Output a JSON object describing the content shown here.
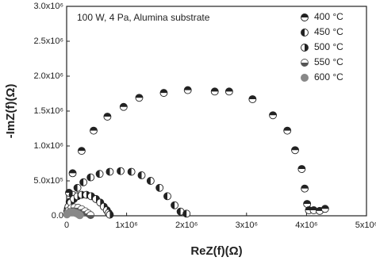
{
  "chart_data": {
    "type": "scatter",
    "annotation": "100 W, 4 Pa, Alumina substrate",
    "x_label": "ReZ(f)(Ω)",
    "y_label": "-ImZ(f)(Ω)",
    "xlim": [
      0,
      5000000
    ],
    "ylim": [
      0,
      3000000
    ],
    "xticks": [
      0,
      {
        "value": 1000000,
        "label": "1x10⁶"
      },
      {
        "value": 2000000,
        "label": "2x10⁶"
      },
      {
        "value": 3000000,
        "label": "3x10⁶"
      },
      {
        "value": 4000000,
        "label": "4x10⁶"
      },
      {
        "value": 5000000,
        "label": "5x10⁶"
      }
    ],
    "yticks": [
      {
        "value": 0,
        "label": "0.0"
      },
      {
        "value": 500000,
        "label": "5.0x10⁵"
      },
      {
        "value": 1000000,
        "label": "1.0x10⁶"
      },
      {
        "value": 1500000,
        "label": "1.5x10⁶"
      },
      {
        "value": 2000000,
        "label": "2.0x10⁶"
      },
      {
        "value": 2500000,
        "label": "2.5x10⁶"
      },
      {
        "value": 3000000,
        "label": "3.0x10⁶"
      }
    ],
    "legend": "upper right",
    "series": [
      {
        "name": "400 °C",
        "color": "#222222",
        "marker_half": "top",
        "x": [
          40000,
          100000,
          250000,
          450000,
          680000,
          950000,
          1210000,
          1620000,
          2020000,
          2470000,
          2710000,
          3100000,
          3440000,
          3680000,
          3810000,
          3920000,
          3970000,
          4010000,
          4040000,
          4120000,
          4220000,
          4310000
        ],
        "values": [
          330000,
          610000,
          930000,
          1220000,
          1420000,
          1560000,
          1690000,
          1760000,
          1800000,
          1780000,
          1780000,
          1670000,
          1440000,
          1220000,
          940000,
          670000,
          390000,
          170000,
          80000,
          80000,
          70000,
          100000
        ]
      },
      {
        "name": "450 °C",
        "color": "#222222",
        "marker_half": "left",
        "x": [
          20000,
          50000,
          100000,
          180000,
          280000,
          400000,
          550000,
          720000,
          900000,
          1080000,
          1250000,
          1400000,
          1550000,
          1680000,
          1800000,
          1900000,
          2000000
        ],
        "values": [
          100000,
          200000,
          300000,
          400000,
          480000,
          550000,
          600000,
          630000,
          640000,
          630000,
          580000,
          500000,
          400000,
          280000,
          150000,
          60000,
          30000
        ]
      },
      {
        "name": "500 °C",
        "color": "#222222",
        "marker_half": "right",
        "x": [
          10000,
          30000,
          70000,
          120000,
          180000,
          250000,
          330000,
          410000,
          490000,
          560000,
          620000,
          670000,
          700000,
          720000
        ],
        "values": [
          60000,
          130000,
          190000,
          240000,
          280000,
          300000,
          300000,
          280000,
          240000,
          190000,
          130000,
          80000,
          40000,
          15000
        ]
      },
      {
        "name": "550 °C",
        "color": "#555555",
        "marker_half": "bottom",
        "x": [
          10000,
          40000,
          80000,
          130000,
          190000,
          250000,
          310000,
          360000,
          400000
        ],
        "values": [
          40000,
          80000,
          110000,
          120000,
          115000,
          95000,
          65000,
          35000,
          10000
        ]
      },
      {
        "name": "600 °C",
        "color": "#888888",
        "marker_half": "full",
        "x": [
          5000,
          30000,
          70000,
          110000,
          150000,
          190000,
          220000
        ],
        "values": [
          20000,
          40000,
          50000,
          50000,
          40000,
          25000,
          8000
        ]
      }
    ]
  }
}
